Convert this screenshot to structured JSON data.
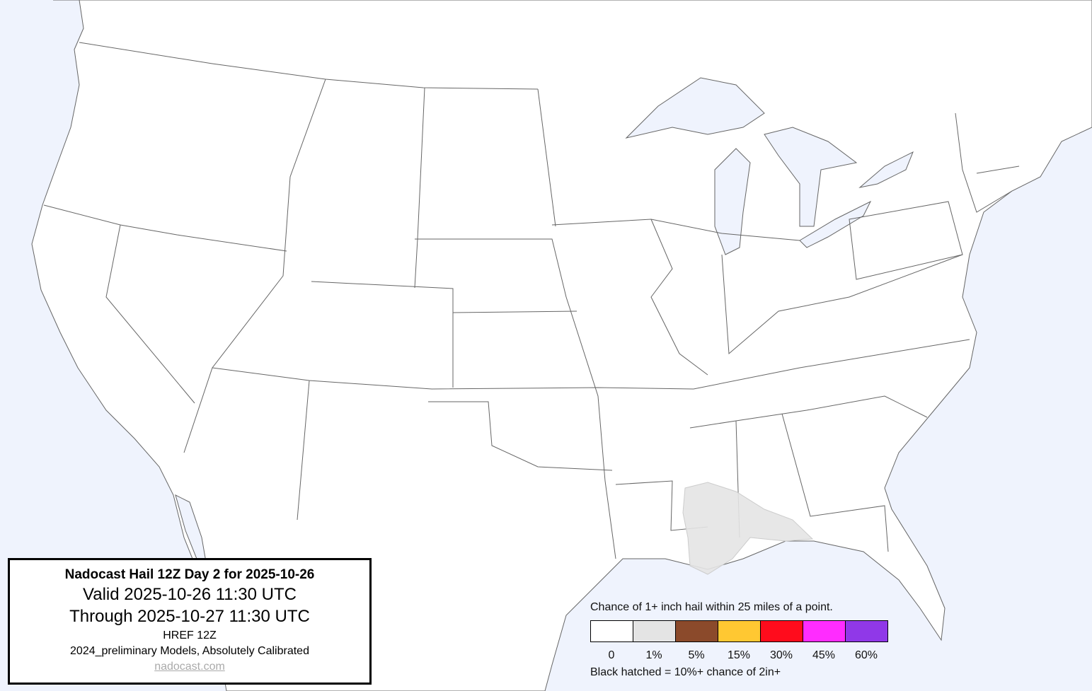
{
  "info_box": {
    "title": "Nadocast Hail 12Z Day 2 for 2025-10-26",
    "valid": "Valid 2025-10-26 11:30 UTC",
    "through": "Through 2025-10-27 11:30 UTC",
    "model": "HREF 12Z",
    "calibration": "2024_preliminary Models, Absolutely Calibrated",
    "link": "nadocast.com"
  },
  "legend": {
    "title": "Chance of 1+ inch hail within 25 miles of a point.",
    "bins": [
      {
        "label": "0",
        "color": "#ffffff"
      },
      {
        "label": "1%",
        "color": "#e4e4e4"
      },
      {
        "label": "5%",
        "color": "#8b4a2b"
      },
      {
        "label": "15%",
        "color": "#ffc832"
      },
      {
        "label": "30%",
        "color": "#ff0c1c"
      },
      {
        "label": "45%",
        "color": "#ff2cff"
      },
      {
        "label": "60%",
        "color": "#9038e8"
      }
    ],
    "hatch_note": "Black hatched = 10%+ chance of 2in+"
  },
  "map": {
    "water_color": "#eff3fd",
    "land_color": "#ffffff",
    "forecast_areas": [
      {
        "region": "Louisiana / Mississippi / Alabama Gulf Coast",
        "probability": "1%",
        "color": "#e4e4e4"
      }
    ]
  }
}
